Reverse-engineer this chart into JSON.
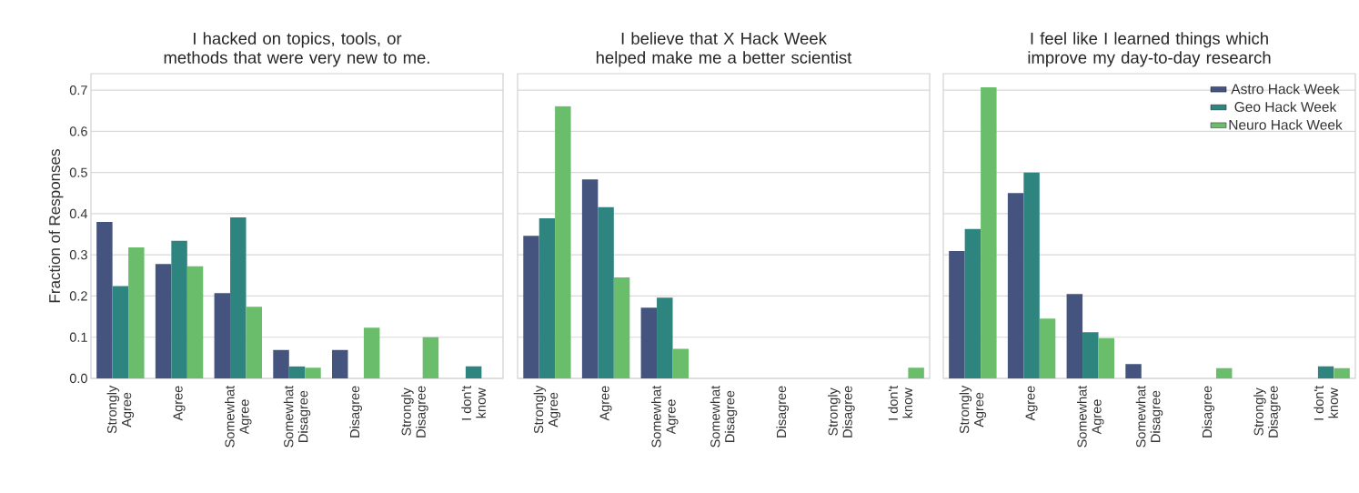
{
  "chart_data": [
    {
      "type": "bar",
      "title": "I hacked on topics, tools, or methods that were very new to me.",
      "ylabel": "Fraction of Responses",
      "categories": [
        "Strongly Agree",
        "Agree",
        "Somewhat Agree",
        "Somewhat Disagree",
        "Disagree",
        "Strongly Disagree",
        "I don't know"
      ],
      "series": [
        {
          "color": "#44547f",
          "values": [
            0.38,
            0.278,
            0.207,
            0.069,
            0.069,
            0,
            0
          ]
        },
        {
          "color": "#2e847f",
          "values": [
            0.224,
            0.334,
            0.391,
            0.029,
            0,
            0,
            0.029
          ]
        },
        {
          "color": "#6abd6b",
          "values": [
            0.318,
            0.272,
            0.174,
            0.026,
            0.123,
            0.1,
            0
          ]
        }
      ],
      "ylim": [
        0,
        0.74
      ],
      "yticks": [
        {
          "value": 0,
          "label": "0.0"
        },
        0.1,
        0.2,
        0.3,
        0.4,
        0.5,
        0.6,
        0.7
      ],
      "grid": "y"
    },
    {
      "type": "bar",
      "title": "I believe that X Hack Week helped make me a better scientist",
      "categories": [
        "Strongly Agree",
        "Agree",
        "Somewhat Agree",
        "Somewhat Disagree",
        "Disagree",
        "Strongly Disagree",
        "I don't know"
      ],
      "series": [
        {
          "color": "#44547f",
          "values": [
            0.346,
            0.483,
            0.172,
            0,
            0,
            0,
            0
          ]
        },
        {
          "color": "#2e847f",
          "values": [
            0.389,
            0.416,
            0.196,
            0,
            0,
            0,
            0
          ]
        },
        {
          "color": "#6abd6b",
          "values": [
            0.661,
            0.245,
            0.072,
            0,
            0,
            0,
            0.026
          ]
        }
      ],
      "ylim": [
        0,
        0.74
      ],
      "yticks": [
        0,
        0.1,
        0.2,
        0.3,
        0.4,
        0.5,
        0.6,
        0.7
      ],
      "grid": "y",
      "tick_labels": "x"
    },
    {
      "type": "bar",
      "title": "I feel like I learned things which improve my day-to-day research",
      "categories": [
        "Strongly Agree",
        "Agree",
        "Somewhat Agree",
        "Somewhat Disagree",
        "Disagree",
        "Strongly Disagree",
        "I don't know"
      ],
      "series": [
        {
          "name": "Astro Hack Week",
          "color": "#44547f",
          "values": [
            0.309,
            0.45,
            0.205,
            0.035,
            0,
            0,
            0
          ]
        },
        {
          "name": "Geo Hack Week",
          "color": "#2e847f",
          "values": [
            0.363,
            0.5,
            0.112,
            0,
            0,
            0,
            0.029
          ]
        },
        {
          "name": "Neuro Hack Week",
          "color": "#6abd6b",
          "values": [
            0.707,
            0.145,
            0.098,
            0,
            0.025,
            0,
            0.025
          ]
        }
      ],
      "ylim": [
        0,
        0.74
      ],
      "yticks": [
        0,
        0.1,
        0.2,
        0.3,
        0.4,
        0.5,
        0.6,
        0.7
      ],
      "grid": "y",
      "tick_labels": "x",
      "legend": "top right"
    }
  ]
}
